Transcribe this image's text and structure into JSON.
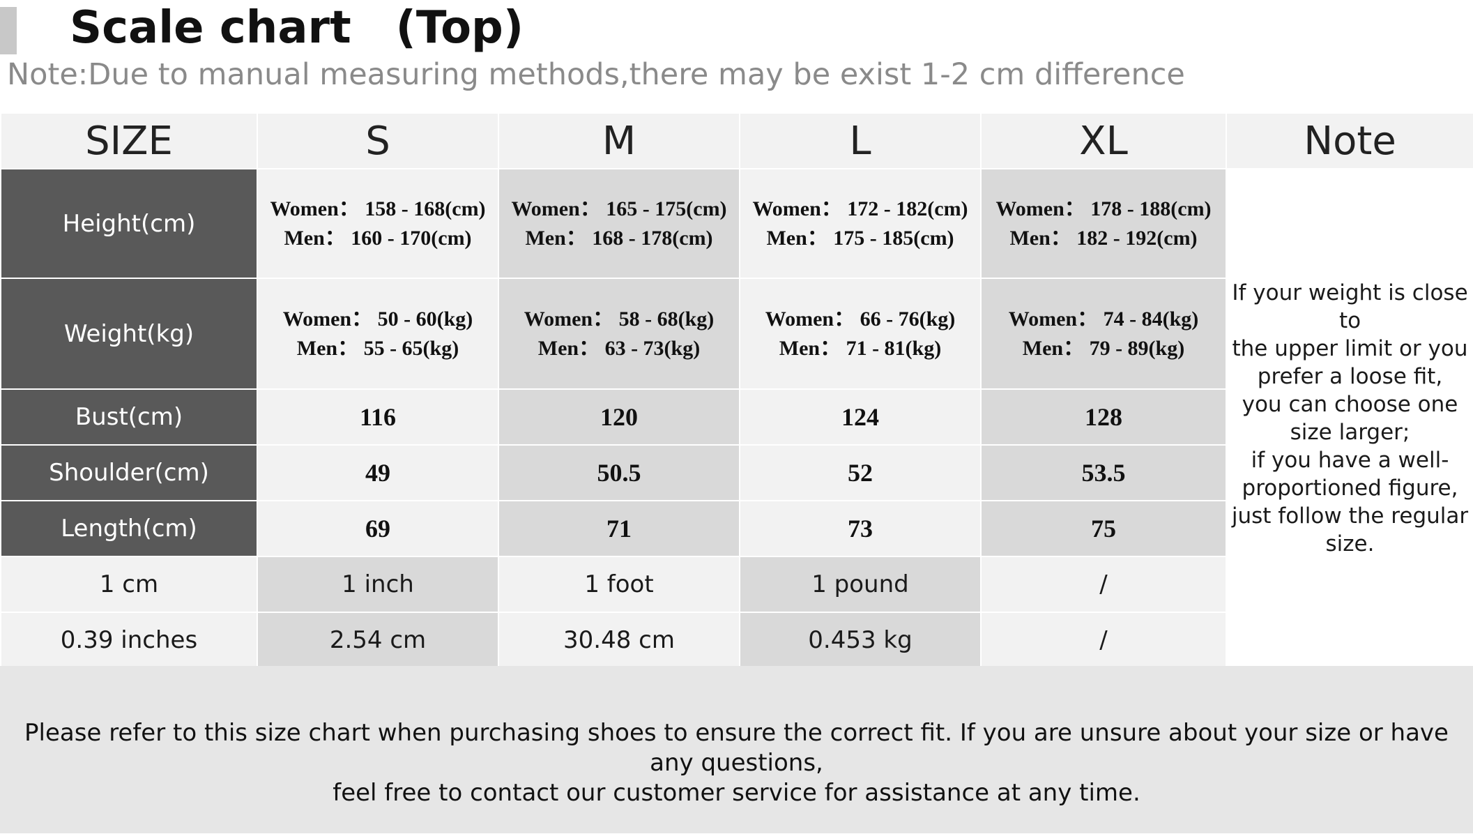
{
  "title": "Scale chart　(Top)",
  "note": "Note:Due to manual measuring methods,there may be exist 1-2 cm difference",
  "header": [
    "SIZE",
    "S",
    "M",
    "L",
    "XL",
    "Note"
  ],
  "rows": [
    {
      "label": "Height(cm)",
      "cells": [
        {
          "women": "Women： 158 - 168(cm)",
          "men": "Men： 160 - 170(cm)"
        },
        {
          "women": "Women： 165 - 175(cm)",
          "men": "Men： 168 - 178(cm)"
        },
        {
          "women": "Women： 172 - 182(cm)",
          "men": "Men： 175 - 185(cm)"
        },
        {
          "women": "Women： 178 - 188(cm)",
          "men": "Men： 182 - 192(cm)"
        }
      ]
    },
    {
      "label": "Weight(kg)",
      "cells": [
        {
          "women": "Women： 50 - 60(kg)",
          "men": "Men： 55 - 65(kg)"
        },
        {
          "women": "Women： 58 - 68(kg)",
          "men": "Men： 63 - 73(kg)"
        },
        {
          "women": "Women： 66 - 76(kg)",
          "men": "Men： 71 - 81(kg)"
        },
        {
          "women": "Women： 74 - 84(kg)",
          "men": "Men： 79 - 89(kg)"
        }
      ]
    },
    {
      "label": "Bust(cm)",
      "values": [
        "116",
        "120",
        "124",
        "128"
      ]
    },
    {
      "label": "Shoulder(cm)",
      "values": [
        "49",
        "50.5",
        "52",
        "53.5"
      ]
    },
    {
      "label": "Length(cm)",
      "values": [
        "69",
        "71",
        "73",
        "75"
      ]
    }
  ],
  "conversions": [
    [
      "1 cm",
      "1 inch",
      "1 foot",
      "1 pound",
      "/"
    ],
    [
      "0.39 inches",
      "2.54 cm",
      "30.48 cm",
      "0.453 kg",
      "/"
    ]
  ],
  "note_lines": [
    "If your weight is close to",
    "the upper limit or you",
    "prefer a loose fit,",
    "you can choose one",
    "size larger;",
    "if you have a well-",
    "proportioned figure,",
    "just follow the regular",
    "size."
  ],
  "footer_lines": [
    "Please refer to this size chart when purchasing shoes to ensure the correct fit. If you are unsure about your size or have any questions,",
    "feel free to contact our customer service for assistance at any time."
  ]
}
